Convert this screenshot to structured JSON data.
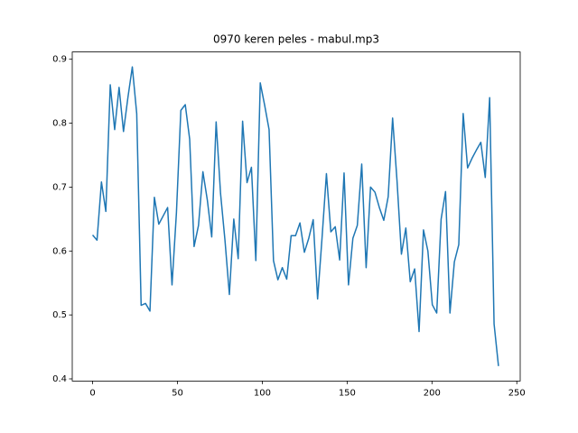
{
  "chart_data": {
    "type": "line",
    "title": "0970 keren peles - mabul.mp3",
    "x": [
      0,
      2.6,
      5.2,
      7.8,
      10.4,
      13,
      15.6,
      18.2,
      20.8,
      23.4,
      26,
      28.6,
      31.2,
      33.8,
      36.4,
      39,
      41.6,
      44.2,
      46.8,
      49.4,
      52,
      54.6,
      57.2,
      59.8,
      62.4,
      65,
      67.6,
      70.2,
      72.8,
      75.4,
      78,
      80.6,
      83.2,
      85.8,
      88.4,
      91,
      93.6,
      96.2,
      98.8,
      101.4,
      104,
      106.6,
      109.2,
      111.8,
      114.4,
      117,
      119.6,
      122.2,
      124.8,
      127.4,
      130,
      132.6,
      135.2,
      137.8,
      140.4,
      143,
      145.6,
      148.2,
      150.8,
      153.4,
      156,
      158.6,
      161.2,
      163.8,
      166.4,
      169,
      171.6,
      174.2,
      176.8,
      179.4,
      182,
      184.6,
      187.2,
      189.8,
      192.4,
      195,
      197.6,
      200.2,
      202.8,
      205.4,
      208,
      210.6,
      213.2,
      215.8,
      218.4,
      221,
      223.6,
      226.2,
      228.8,
      231.4,
      234,
      236.6,
      239.2
    ],
    "series": [
      {
        "color": "#1f77b4",
        "values": [
          0.625,
          0.617,
          0.708,
          0.662,
          0.86,
          0.79,
          0.856,
          0.787,
          0.84,
          0.888,
          0.815,
          0.515,
          0.518,
          0.506,
          0.684,
          0.642,
          0.655,
          0.668,
          0.547,
          0.66,
          0.82,
          0.829,
          0.775,
          0.607,
          0.64,
          0.724,
          0.68,
          0.622,
          0.802,
          0.69,
          0.617,
          0.532,
          0.65,
          0.588,
          0.803,
          0.707,
          0.731,
          0.585,
          0.863,
          0.828,
          0.79,
          0.585,
          0.555,
          0.574,
          0.556,
          0.624,
          0.624,
          0.644,
          0.598,
          0.62,
          0.649,
          0.525,
          0.62,
          0.721,
          0.63,
          0.638,
          0.586,
          0.722,
          0.547,
          0.62,
          0.64,
          0.736,
          0.574,
          0.7,
          0.692,
          0.668,
          0.648,
          0.685,
          0.808,
          0.71,
          0.595,
          0.636,
          0.552,
          0.572,
          0.474,
          0.633,
          0.6,
          0.516,
          0.503,
          0.65,
          0.693,
          0.503,
          0.583,
          0.61,
          0.815,
          0.73,
          0.745,
          0.758,
          0.77,
          0.715,
          0.84,
          0.486,
          0.42
        ]
      }
    ],
    "xlim": [
      -12,
      252
    ],
    "ylim": [
      0.3966,
      0.9114
    ],
    "xticks": [
      0,
      50,
      100,
      150,
      200,
      250
    ],
    "yticks": [
      0.4,
      0.5,
      0.6,
      0.7,
      0.8,
      0.9
    ]
  }
}
